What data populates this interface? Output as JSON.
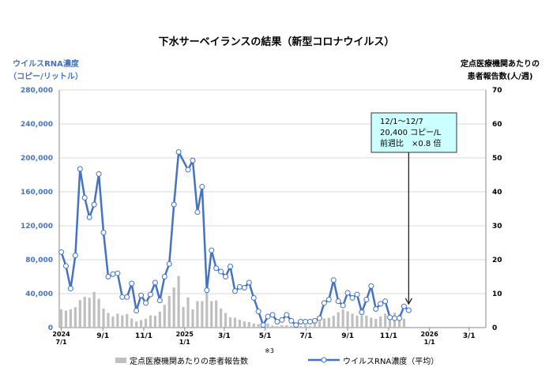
{
  "chart_data": {
    "type": "bar+line",
    "title": "下水サーベイランスの結果（新型コロナウイルス）",
    "left_axis": {
      "label_lines": [
        "ウイルスRNA濃度",
        "（コピー/リットル）"
      ],
      "ylim": [
        0,
        280000
      ],
      "ticks": [
        "0",
        "40,000",
        "80,000",
        "120,000",
        "160,000",
        "200,000",
        "240,000",
        "280,000"
      ],
      "tick_values": [
        0,
        40000,
        80000,
        120000,
        160000,
        200000,
        240000,
        280000
      ],
      "color": "#4472C4"
    },
    "right_axis": {
      "label_lines": [
        "定点医療機関あたりの",
        "患者報告数(人/週)"
      ],
      "ylim": [
        0,
        70
      ],
      "ticks": [
        "0",
        "10",
        "20",
        "30",
        "40",
        "50",
        "60",
        "70"
      ],
      "tick_values": [
        0,
        10,
        20,
        30,
        40,
        50,
        60,
        70
      ]
    },
    "x_axis": {
      "xlim": [
        "2024-06-28",
        "2026-03-26"
      ],
      "ticks": [
        {
          "date": "2024-07-01",
          "label": "7/1",
          "year": "2024"
        },
        {
          "date": "2024-09-01",
          "label": "9/1",
          "year": ""
        },
        {
          "date": "2024-11-01",
          "label": "11/1",
          "year": ""
        },
        {
          "date": "2025-01-01",
          "label": "1/1",
          "year": "2025"
        },
        {
          "date": "2025-03-01",
          "label": "3/1",
          "year": ""
        },
        {
          "date": "2025-05-01",
          "label": "5/1",
          "year": ""
        },
        {
          "date": "2025-07-01",
          "label": "7/1",
          "year": ""
        },
        {
          "date": "2025-09-01",
          "label": "9/1",
          "year": ""
        },
        {
          "date": "2025-11-01",
          "label": "11/1",
          "year": ""
        },
        {
          "date": "2026-01-01",
          "label": "1/1",
          "year": "2026"
        },
        {
          "date": "2026-03-01",
          "label": "3/1",
          "year": ""
        }
      ]
    },
    "grid": "horizontal",
    "dates": [
      "2024-07-01",
      "2024-07-08",
      "2024-07-15",
      "2024-07-22",
      "2024-07-29",
      "2024-08-05",
      "2024-08-12",
      "2024-08-19",
      "2024-08-26",
      "2024-09-02",
      "2024-09-09",
      "2024-09-16",
      "2024-09-23",
      "2024-09-30",
      "2024-10-07",
      "2024-10-14",
      "2024-10-21",
      "2024-10-28",
      "2024-11-04",
      "2024-11-11",
      "2024-11-18",
      "2024-11-25",
      "2024-12-02",
      "2024-12-09",
      "2024-12-16",
      "2024-12-23",
      "2024-12-30",
      "2025-01-06",
      "2025-01-13",
      "2025-01-20",
      "2025-01-27",
      "2025-02-03",
      "2025-02-10",
      "2025-02-17",
      "2025-02-24",
      "2025-03-03",
      "2025-03-10",
      "2025-03-17",
      "2025-03-24",
      "2025-03-31",
      "2025-04-07",
      "2025-04-14",
      "2025-04-21",
      "2025-04-28",
      "2025-05-05",
      "2025-05-12",
      "2025-05-19",
      "2025-05-26",
      "2025-06-02",
      "2025-06-09",
      "2025-06-16",
      "2025-06-23",
      "2025-06-30",
      "2025-07-07",
      "2025-07-14",
      "2025-07-21",
      "2025-07-28",
      "2025-08-04",
      "2025-08-11",
      "2025-08-18",
      "2025-08-25",
      "2025-09-01",
      "2025-09-08",
      "2025-09-15",
      "2025-09-22",
      "2025-09-29",
      "2025-10-06",
      "2025-10-13",
      "2025-10-20",
      "2025-10-27",
      "2025-11-03",
      "2025-11-10",
      "2025-11-17",
      "2025-11-24",
      "2025-12-01"
    ],
    "series": [
      {
        "name": "定点医療機関あたりの患者報告数",
        "type": "bar",
        "axis": "right",
        "color": "#BFBFBF",
        "values": [
          5.4,
          5.0,
          5.4,
          6.0,
          8.1,
          9.1,
          8.8,
          10.5,
          8.5,
          5.6,
          4.3,
          3.3,
          4.1,
          3.6,
          4.0,
          2.7,
          1.8,
          2.2,
          2.6,
          3.6,
          3.5,
          4.7,
          6.7,
          9.3,
          11.8,
          15.2,
          6.1,
          8.9,
          5.4,
          7.8,
          7.8,
          10.5,
          7.8,
          8.0,
          5.6,
          4.3,
          3.0,
          2.9,
          2.3,
          1.8,
          1.6,
          1.2,
          1.0,
          1.1,
          1.2,
          0.6,
          0.4,
          0.7,
          0.7,
          0.5,
          0.5,
          0.5,
          0.8,
          0.5,
          1.3,
          1.8,
          2.7,
          2.9,
          3.5,
          4.5,
          5.3,
          4.8,
          4.1,
          3.5,
          3.6,
          3.5,
          2.9,
          2.6,
          3.3,
          4.1,
          3.3,
          4.4,
          3.9,
          2.6,
          null
        ]
      },
      {
        "name": "ウイルスRNA濃度（平均）",
        "type": "line",
        "axis": "left",
        "color": "#4472C4",
        "values": [
          89000,
          72600,
          46000,
          85000,
          187000,
          153000,
          130000,
          145000,
          181000,
          112000,
          60000,
          63000,
          64000,
          36000,
          36000,
          52000,
          20000,
          38000,
          29000,
          39000,
          53000,
          32000,
          60000,
          75000,
          145000,
          207000,
          null,
          186000,
          197000,
          136000,
          166000,
          44000,
          91000,
          70000,
          66000,
          60000,
          72000,
          43000,
          48000,
          47000,
          53000,
          35000,
          19000,
          3000,
          13000,
          15000,
          7000,
          9000,
          15000,
          8000,
          3000,
          7000,
          7000,
          7000,
          8000,
          11000,
          29000,
          33000,
          56000,
          31000,
          26000,
          41000,
          35000,
          39000,
          18000,
          33000,
          49000,
          22000,
          28000,
          31000,
          12000,
          11000,
          11000,
          25000,
          20400
        ]
      }
    ],
    "legend": {
      "position": "bottom",
      "bar_label": "定点医療機関あたりの患者報告数",
      "line_label": "ウイルスRNA濃度（平均）",
      "footnote_mark": "※3"
    },
    "annotation": {
      "lines": [
        "12/1～12/7",
        "20,400 コピー/L",
        "前週比　×0.8 倍"
      ],
      "target_date": "2025-12-01",
      "box_color": "#CCFFFF"
    }
  }
}
